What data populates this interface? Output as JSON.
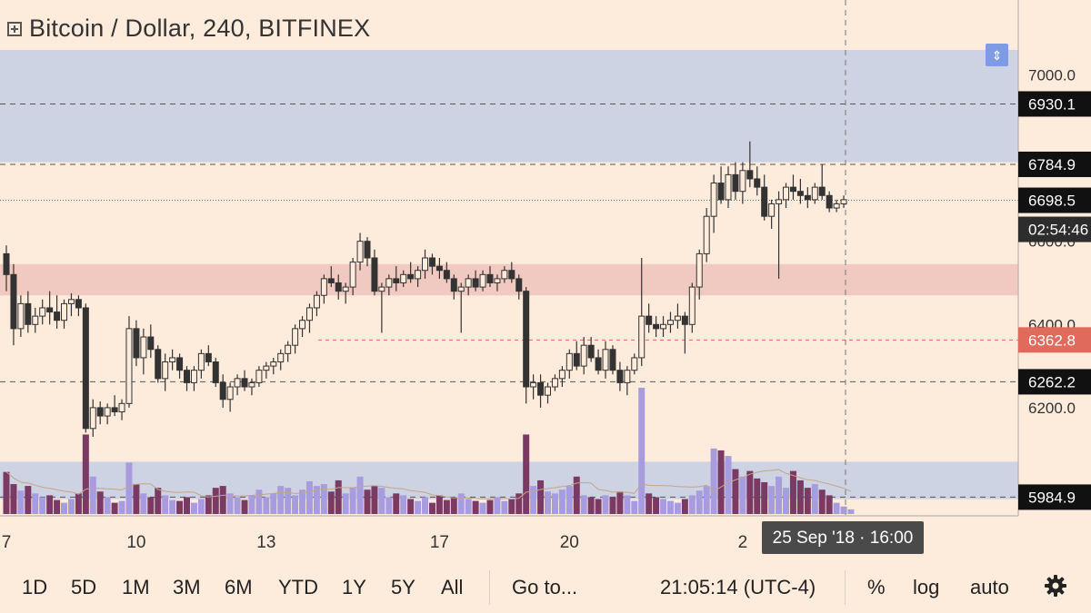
{
  "header": {
    "title": "Bitcoin / Dollar, 240, BITFINEX",
    "icon": "chart-toggle-icon",
    "collapse_icon": "collapse-arrows-icon"
  },
  "chart_data": {
    "type": "candlestick",
    "symbol": "Bitcoin / Dollar",
    "interval": "240",
    "exchange": "BITFINEX",
    "ylim": [
      5940,
      7180
    ],
    "y_ticks": [
      {
        "value": 7000,
        "label": "7000.0"
      },
      {
        "value": 6800,
        "label": "6800.0"
      },
      {
        "value": 6600,
        "label": "6600.0"
      },
      {
        "value": 6400,
        "label": "6400.0"
      },
      {
        "value": 6200,
        "label": "6200.0"
      }
    ],
    "x_ticks": [
      {
        "label": "7",
        "index": 0
      },
      {
        "label": "10",
        "index": 18
      },
      {
        "label": "13",
        "index": 36
      },
      {
        "label": "17",
        "index": 60
      },
      {
        "label": "20",
        "index": 78
      },
      {
        "label": "2",
        "index": 102
      }
    ],
    "price_labels": [
      {
        "value": 6930.1,
        "label": "6930.1",
        "style": "black"
      },
      {
        "value": 6784.9,
        "label": "6784.9",
        "style": "black"
      },
      {
        "value": 6698.5,
        "label": "6698.5",
        "style": "black"
      },
      {
        "value": 6698.5,
        "label": "02:54:46",
        "style": "countdown"
      },
      {
        "value": 6362.8,
        "label": "6362.8",
        "style": "red"
      },
      {
        "value": 6262.2,
        "label": "6262.2",
        "style": "black"
      },
      {
        "value": 5984.9,
        "label": "5984.9",
        "style": "black"
      }
    ],
    "horizontal_lines": [
      {
        "value": 6930.1,
        "style": "dashed"
      },
      {
        "value": 6784.9,
        "style": "dashed"
      },
      {
        "value": 6698.5,
        "style": "dotted"
      },
      {
        "value": 6362.8,
        "style": "dashed-red"
      },
      {
        "value": 6262.2,
        "style": "dashed"
      },
      {
        "value": 5984.9,
        "style": "dashed"
      }
    ],
    "zones": [
      {
        "from": 6790,
        "to": 7060,
        "color": "#cdd3e2"
      },
      {
        "from": 6470,
        "to": 6545,
        "color": "#f0c9c0"
      },
      {
        "from": 5980,
        "to": 6070,
        "color": "#cdd3e2"
      }
    ],
    "cursor": {
      "label": "25 Sep '18 · 16:00",
      "index": 107
    },
    "colors": {
      "candle": "#333333",
      "volume_up": "#a89ce0",
      "volume_down": "#7a3a63",
      "volume_ma": "#c4a48a",
      "red_label": "#e06a5c"
    },
    "candles": [
      [
        6570,
        6590,
        6480,
        6520
      ],
      [
        6520,
        6545,
        6350,
        6390
      ],
      [
        6390,
        6470,
        6370,
        6450
      ],
      [
        6450,
        6480,
        6380,
        6400
      ],
      [
        6400,
        6440,
        6380,
        6420
      ],
      [
        6420,
        6460,
        6400,
        6440
      ],
      [
        6440,
        6480,
        6400,
        6430
      ],
      [
        6430,
        6470,
        6390,
        6410
      ],
      [
        6410,
        6460,
        6390,
        6450
      ],
      [
        6450,
        6475,
        6420,
        6460
      ],
      [
        6460,
        6470,
        6420,
        6440
      ],
      [
        6440,
        6450,
        6140,
        6150
      ],
      [
        6150,
        6220,
        6130,
        6200
      ],
      [
        6200,
        6215,
        6160,
        6180
      ],
      [
        6180,
        6210,
        6160,
        6200
      ],
      [
        6200,
        6230,
        6180,
        6190
      ],
      [
        6190,
        6220,
        6170,
        6210
      ],
      [
        6210,
        6420,
        6200,
        6390
      ],
      [
        6390,
        6410,
        6300,
        6320
      ],
      [
        6320,
        6390,
        6280,
        6370
      ],
      [
        6370,
        6400,
        6320,
        6340
      ],
      [
        6340,
        6350,
        6260,
        6270
      ],
      [
        6270,
        6330,
        6240,
        6310
      ],
      [
        6310,
        6340,
        6290,
        6320
      ],
      [
        6320,
        6330,
        6270,
        6290
      ],
      [
        6290,
        6300,
        6240,
        6260
      ],
      [
        6260,
        6300,
        6240,
        6290
      ],
      [
        6290,
        6340,
        6270,
        6330
      ],
      [
        6330,
        6350,
        6300,
        6310
      ],
      [
        6310,
        6320,
        6250,
        6260
      ],
      [
        6260,
        6280,
        6200,
        6220
      ],
      [
        6220,
        6260,
        6190,
        6250
      ],
      [
        6250,
        6280,
        6230,
        6270
      ],
      [
        6270,
        6290,
        6240,
        6250
      ],
      [
        6250,
        6270,
        6230,
        6260
      ],
      [
        6260,
        6300,
        6250,
        6290
      ],
      [
        6290,
        6310,
        6270,
        6300
      ],
      [
        6300,
        6320,
        6280,
        6310
      ],
      [
        6310,
        6340,
        6290,
        6330
      ],
      [
        6330,
        6360,
        6310,
        6350
      ],
      [
        6350,
        6400,
        6330,
        6390
      ],
      [
        6390,
        6420,
        6370,
        6410
      ],
      [
        6410,
        6450,
        6380,
        6440
      ],
      [
        6440,
        6480,
        6420,
        6470
      ],
      [
        6470,
        6520,
        6450,
        6510
      ],
      [
        6510,
        6540,
        6490,
        6500
      ],
      [
        6500,
        6520,
        6460,
        6480
      ],
      [
        6480,
        6500,
        6450,
        6490
      ],
      [
        6490,
        6560,
        6470,
        6550
      ],
      [
        6550,
        6620,
        6530,
        6600
      ],
      [
        6600,
        6610,
        6540,
        6560
      ],
      [
        6560,
        6580,
        6470,
        6480
      ],
      [
        6480,
        6500,
        6380,
        6490
      ],
      [
        6490,
        6520,
        6470,
        6510
      ],
      [
        6510,
        6540,
        6480,
        6500
      ],
      [
        6500,
        6530,
        6490,
        6520
      ],
      [
        6520,
        6550,
        6500,
        6510
      ],
      [
        6510,
        6540,
        6490,
        6530
      ],
      [
        6530,
        6580,
        6510,
        6560
      ],
      [
        6560,
        6570,
        6520,
        6540
      ],
      [
        6540,
        6560,
        6510,
        6530
      ],
      [
        6530,
        6550,
        6500,
        6510
      ],
      [
        6510,
        6520,
        6460,
        6480
      ],
      [
        6480,
        6500,
        6380,
        6490
      ],
      [
        6490,
        6520,
        6470,
        6510
      ],
      [
        6510,
        6530,
        6480,
        6490
      ],
      [
        6490,
        6530,
        6480,
        6520
      ],
      [
        6520,
        6540,
        6490,
        6500
      ],
      [
        6500,
        6520,
        6480,
        6510
      ],
      [
        6510,
        6540,
        6500,
        6530
      ],
      [
        6530,
        6550,
        6500,
        6510
      ],
      [
        6510,
        6520,
        6460,
        6480
      ],
      [
        6480,
        6490,
        6210,
        6250
      ],
      [
        6250,
        6280,
        6220,
        6260
      ],
      [
        6260,
        6280,
        6200,
        6230
      ],
      [
        6230,
        6260,
        6210,
        6250
      ],
      [
        6250,
        6280,
        6240,
        6270
      ],
      [
        6270,
        6300,
        6250,
        6290
      ],
      [
        6290,
        6340,
        6270,
        6330
      ],
      [
        6330,
        6360,
        6290,
        6300
      ],
      [
        6300,
        6370,
        6280,
        6350
      ],
      [
        6350,
        6370,
        6310,
        6320
      ],
      [
        6320,
        6340,
        6280,
        6290
      ],
      [
        6290,
        6360,
        6270,
        6340
      ],
      [
        6340,
        6350,
        6280,
        6290
      ],
      [
        6290,
        6310,
        6240,
        6260
      ],
      [
        6260,
        6300,
        6230,
        6290
      ],
      [
        6290,
        6330,
        6280,
        6320
      ],
      [
        6320,
        6560,
        6300,
        6420
      ],
      [
        6420,
        6450,
        6380,
        6400
      ],
      [
        6400,
        6420,
        6370,
        6390
      ],
      [
        6390,
        6420,
        6370,
        6400
      ],
      [
        6400,
        6430,
        6380,
        6410
      ],
      [
        6410,
        6450,
        6390,
        6420
      ],
      [
        6420,
        6430,
        6330,
        6400
      ],
      [
        6400,
        6500,
        6380,
        6490
      ],
      [
        6490,
        6580,
        6460,
        6570
      ],
      [
        6570,
        6680,
        6550,
        6660
      ],
      [
        6660,
        6760,
        6620,
        6740
      ],
      [
        6740,
        6780,
        6690,
        6700
      ],
      [
        6700,
        6780,
        6680,
        6760
      ],
      [
        6760,
        6790,
        6700,
        6720
      ],
      [
        6720,
        6790,
        6690,
        6770
      ],
      [
        6770,
        6840,
        6730,
        6750
      ],
      [
        6750,
        6780,
        6710,
        6730
      ],
      [
        6730,
        6760,
        6650,
        6660
      ],
      [
        6660,
        6700,
        6630,
        6690
      ],
      [
        6690,
        6720,
        6510,
        6700
      ],
      [
        6700,
        6740,
        6680,
        6730
      ],
      [
        6730,
        6760,
        6700,
        6720
      ],
      [
        6720,
        6750,
        6690,
        6710
      ],
      [
        6710,
        6730,
        6680,
        6700
      ],
      [
        6700,
        6740,
        6690,
        6730
      ],
      [
        6730,
        6785,
        6700,
        6710
      ],
      [
        6710,
        6720,
        6670,
        6680
      ],
      [
        6680,
        6700,
        6670,
        6690
      ],
      [
        6690,
        6710,
        6680,
        6700
      ]
    ],
    "volumes": [
      0.45,
      0.32,
      0.25,
      0.3,
      0.22,
      0.18,
      0.2,
      0.15,
      0.12,
      0.16,
      0.22,
      0.85,
      0.4,
      0.24,
      0.18,
      0.12,
      0.14,
      0.55,
      0.32,
      0.22,
      0.18,
      0.28,
      0.2,
      0.15,
      0.14,
      0.18,
      0.12,
      0.16,
      0.2,
      0.28,
      0.3,
      0.22,
      0.18,
      0.15,
      0.2,
      0.26,
      0.18,
      0.22,
      0.3,
      0.28,
      0.2,
      0.26,
      0.35,
      0.3,
      0.32,
      0.24,
      0.36,
      0.22,
      0.28,
      0.4,
      0.26,
      0.3,
      0.28,
      0.18,
      0.22,
      0.2,
      0.16,
      0.14,
      0.18,
      0.12,
      0.2,
      0.15,
      0.18,
      0.22,
      0.16,
      0.14,
      0.12,
      0.15,
      0.18,
      0.14,
      0.16,
      0.22,
      0.85,
      0.3,
      0.36,
      0.24,
      0.22,
      0.26,
      0.3,
      0.4,
      0.2,
      0.18,
      0.16,
      0.2,
      0.18,
      0.24,
      0.2,
      0.14,
      1.35,
      0.22,
      0.18,
      0.16,
      0.14,
      0.12,
      0.16,
      0.2,
      0.25,
      0.3,
      0.7,
      0.68,
      0.62,
      0.48,
      0.4,
      0.46,
      0.38,
      0.34,
      0.3,
      0.4,
      0.28,
      0.46,
      0.36,
      0.28,
      0.32,
      0.26,
      0.2,
      0.12,
      0.08,
      0.05
    ]
  },
  "toolbar": {
    "ranges": [
      "1D",
      "5D",
      "1M",
      "3M",
      "6M",
      "YTD",
      "1Y",
      "5Y",
      "All"
    ],
    "goto": "Go to...",
    "clock": "21:05:14 (UTC-4)",
    "percent": "%",
    "log": "log",
    "auto": "auto",
    "settings_icon": "gear-icon"
  }
}
